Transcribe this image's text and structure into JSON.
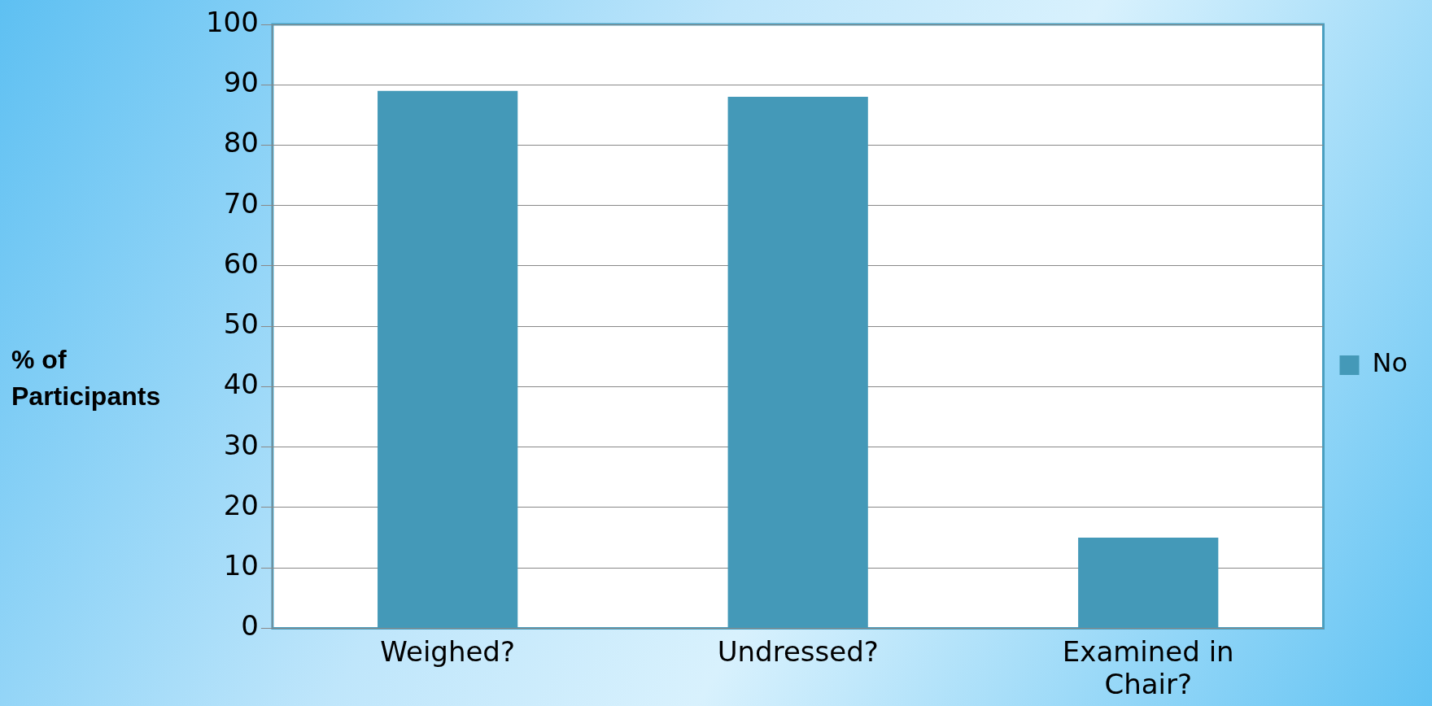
{
  "chart_data": {
    "type": "bar",
    "ylabel": "% of Participants",
    "categories": [
      "Weighed?",
      "Undressed?",
      "Examined in Chair?"
    ],
    "series": [
      {
        "name": "No",
        "color": "#4499b8",
        "values": [
          89,
          88,
          15
        ]
      }
    ],
    "ylim": [
      0,
      100
    ],
    "yticks": [
      0,
      10,
      20,
      30,
      40,
      50,
      60,
      70,
      80,
      90,
      100
    ],
    "grid": "y",
    "legend": "right"
  }
}
